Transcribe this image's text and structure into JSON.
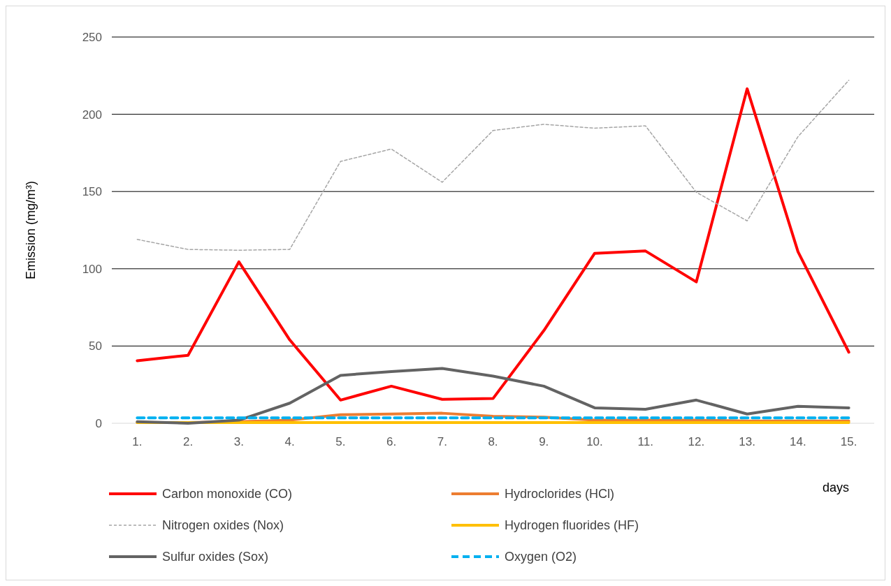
{
  "chart_data": {
    "type": "line",
    "xlabel": "days",
    "ylabel": "Emission (mg/m³)",
    "categories": [
      "1.",
      "2.",
      "3.",
      "4.",
      "5.",
      "6.",
      "7.",
      "8.",
      "9.",
      "10.",
      "11.",
      "12.",
      "13.",
      "14.",
      "15."
    ],
    "ylim": [
      0,
      250
    ],
    "yticks": [
      0,
      50,
      100,
      150,
      200,
      250
    ],
    "grid": "y",
    "legend": "bottom",
    "marker": "none",
    "series": [
      {
        "name": "Carbon monoxide (CO)",
        "color": "#ff0000",
        "line_style": "solid",
        "values": [
          40.5,
          44,
          104.5,
          54,
          15,
          24,
          15.5,
          16,
          60,
          110,
          111.5,
          91.5,
          216.5,
          111,
          46
        ]
      },
      {
        "name": "Hydroclorides (HCl)",
        "color": "#ed7d31",
        "line_style": "solid",
        "values": [
          0.5,
          0.5,
          1,
          2,
          5.5,
          6,
          6.5,
          4.5,
          4,
          2,
          2,
          2,
          1.5,
          1.5,
          1.5
        ]
      },
      {
        "name": "Nitrogen oxides (Nox)",
        "color": "#a5a5a5",
        "line_style": "dashed",
        "values": [
          119,
          112.5,
          112,
          112.5,
          169.5,
          177.5,
          156,
          189.5,
          193.5,
          191,
          192.5,
          149.5,
          131,
          185.5,
          222
        ]
      },
      {
        "name": "Hydrogen fluorides (HF)",
        "color": "#ffc000",
        "line_style": "solid",
        "values": [
          0.5,
          0.5,
          0.5,
          0.5,
          0.5,
          0.5,
          0.5,
          0.5,
          0.5,
          0.5,
          0.5,
          0.5,
          0.5,
          0.5,
          0.5
        ]
      },
      {
        "name": "Sulfur oxides (Sox)",
        "color": "#636363",
        "line_style": "solid",
        "values": [
          1,
          0,
          2,
          13,
          31,
          33.5,
          35.5,
          30.5,
          24,
          10,
          9,
          15,
          6,
          11,
          10
        ]
      },
      {
        "name": "Oxygen (O2)",
        "color": "#00b0f0",
        "line_style": "dashed",
        "values": [
          3.5,
          3.5,
          3.5,
          3.5,
          3.5,
          3.5,
          3.5,
          3.5,
          3.5,
          3.5,
          3.5,
          3.5,
          3.5,
          3.5,
          3.5
        ]
      }
    ]
  }
}
